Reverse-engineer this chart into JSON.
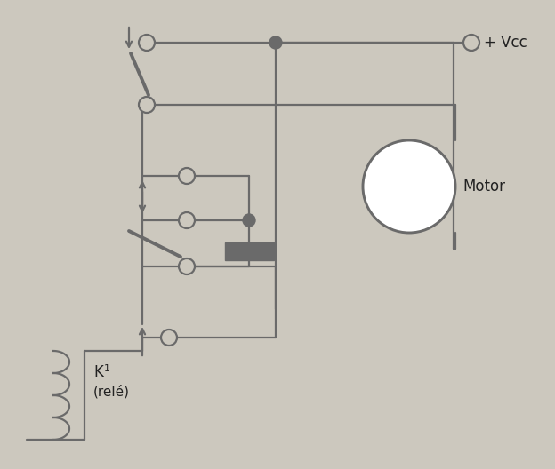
{
  "bg_color": "#ccc8be",
  "line_color": "#6a6a6a",
  "line_width": 1.6,
  "cr": 0.022,
  "dr": 0.014,
  "vcc_label": "+ Vcc",
  "motor_label": "Motor",
  "k1_label": "K",
  "k1_sub": "1",
  "rele_label": "(relé)",
  "arrow_scale": 11,
  "sw_lw": 2.8
}
